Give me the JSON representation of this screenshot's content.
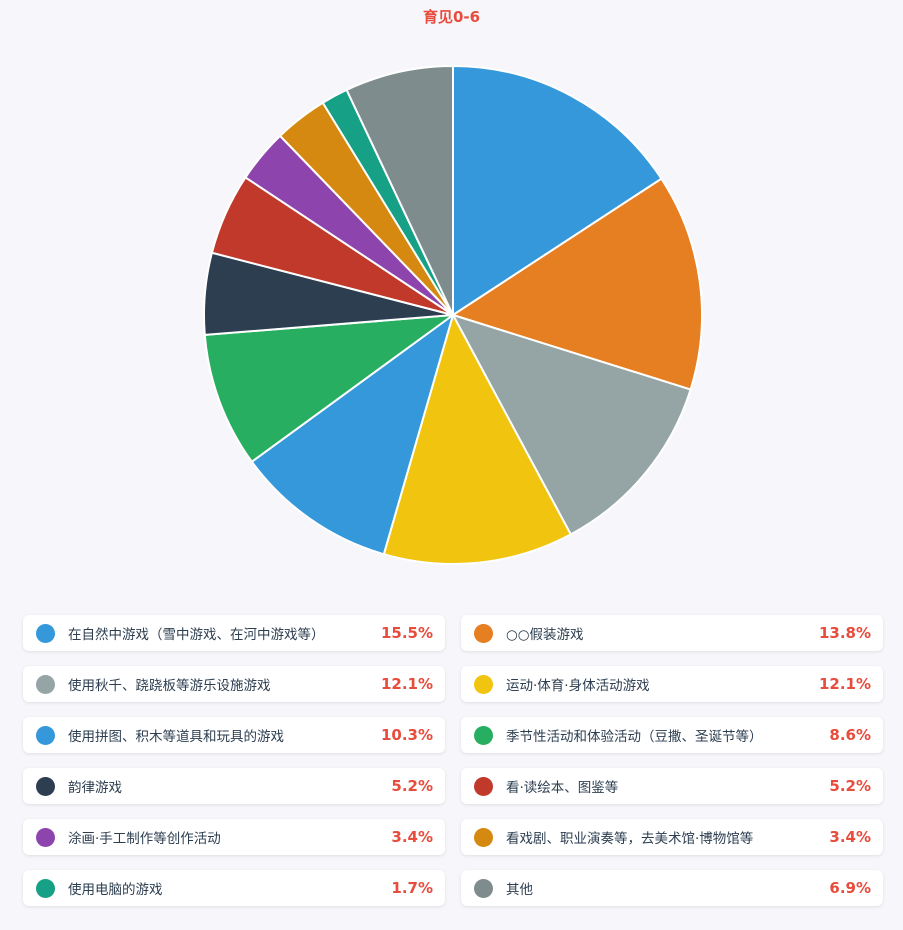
{
  "chart_data": {
    "type": "pie",
    "title": "育见0-6",
    "slices": [
      {
        "label": "在自然中游戏（雪中游戏、在河中游戏等）",
        "value": 15.5,
        "pct": "15.5%",
        "color": "#3498db"
      },
      {
        "label": "○○假装游戏",
        "value": 13.8,
        "pct": "13.8%",
        "color": "#e67e22"
      },
      {
        "label": "使用秋千、跷跷板等游乐设施游戏",
        "value": 12.1,
        "pct": "12.1%",
        "color": "#95a5a6"
      },
      {
        "label": "运动·体育·身体活动游戏",
        "value": 12.1,
        "pct": "12.1%",
        "color": "#f1c40f"
      },
      {
        "label": "使用拼图、积木等道具和玩具的游戏",
        "value": 10.3,
        "pct": "10.3%",
        "color": "#3498db"
      },
      {
        "label": "季节性活动和体验活动（豆撒、圣诞节等）",
        "value": 8.6,
        "pct": "8.6%",
        "color": "#27ae60"
      },
      {
        "label": "韵律游戏",
        "value": 5.2,
        "pct": "5.2%",
        "color": "#2c3e50"
      },
      {
        "label": "看·读绘本、图鉴等",
        "value": 5.2,
        "pct": "5.2%",
        "color": "#c0392b"
      },
      {
        "label": "涂画·手工制作等创作活动",
        "value": 3.4,
        "pct": "3.4%",
        "color": "#8e44ad"
      },
      {
        "label": "看戏剧、职业演奏等，去美术馆·博物馆等",
        "value": 3.4,
        "pct": "3.4%",
        "color": "#d68910"
      },
      {
        "label": "使用电脑的游戏",
        "value": 1.7,
        "pct": "1.7%",
        "color": "#16a085"
      },
      {
        "label": "其他",
        "value": 6.9,
        "pct": "6.9%",
        "color": "#7f8c8d"
      }
    ]
  }
}
